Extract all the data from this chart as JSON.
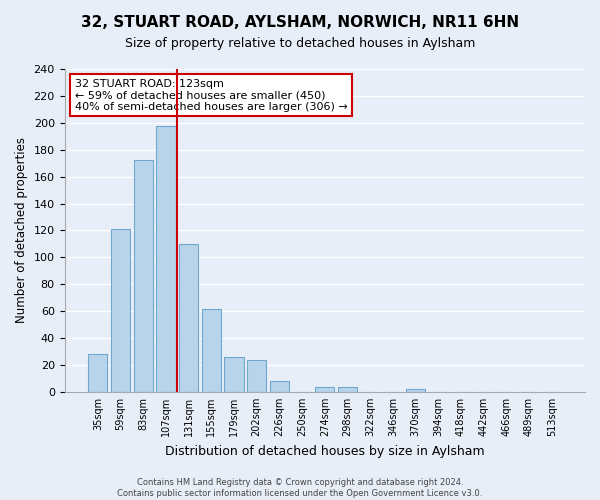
{
  "title": "32, STUART ROAD, AYLSHAM, NORWICH, NR11 6HN",
  "subtitle": "Size of property relative to detached houses in Aylsham",
  "xlabel": "Distribution of detached houses by size in Aylsham",
  "ylabel": "Number of detached properties",
  "bar_labels": [
    "35sqm",
    "59sqm",
    "83sqm",
    "107sqm",
    "131sqm",
    "155sqm",
    "179sqm",
    "202sqm",
    "226sqm",
    "250sqm",
    "274sqm",
    "298sqm",
    "322sqm",
    "346sqm",
    "370sqm",
    "394sqm",
    "418sqm",
    "442sqm",
    "466sqm",
    "489sqm",
    "513sqm"
  ],
  "bar_values": [
    28,
    121,
    172,
    198,
    110,
    62,
    26,
    24,
    8,
    0,
    4,
    4,
    0,
    0,
    2,
    0,
    0,
    0,
    0,
    0,
    0
  ],
  "bar_color": "#b8d4ea",
  "bar_edge_color": "#6ea8cc",
  "background_color": "#e8eef8",
  "grid_color": "#ffffff",
  "vline_color": "#cc0000",
  "ylim": [
    0,
    240
  ],
  "yticks": [
    0,
    20,
    40,
    60,
    80,
    100,
    120,
    140,
    160,
    180,
    200,
    220,
    240
  ],
  "annotation_title": "32 STUART ROAD: 123sqm",
  "annotation_line1": "← 59% of detached houses are smaller (450)",
  "annotation_line2": "40% of semi-detached houses are larger (306) →",
  "annotation_box_color": "#ffffff",
  "annotation_box_edge": "#cc0000",
  "footer1": "Contains HM Land Registry data © Crown copyright and database right 2024.",
  "footer2": "Contains public sector information licensed under the Open Government Licence v3.0."
}
